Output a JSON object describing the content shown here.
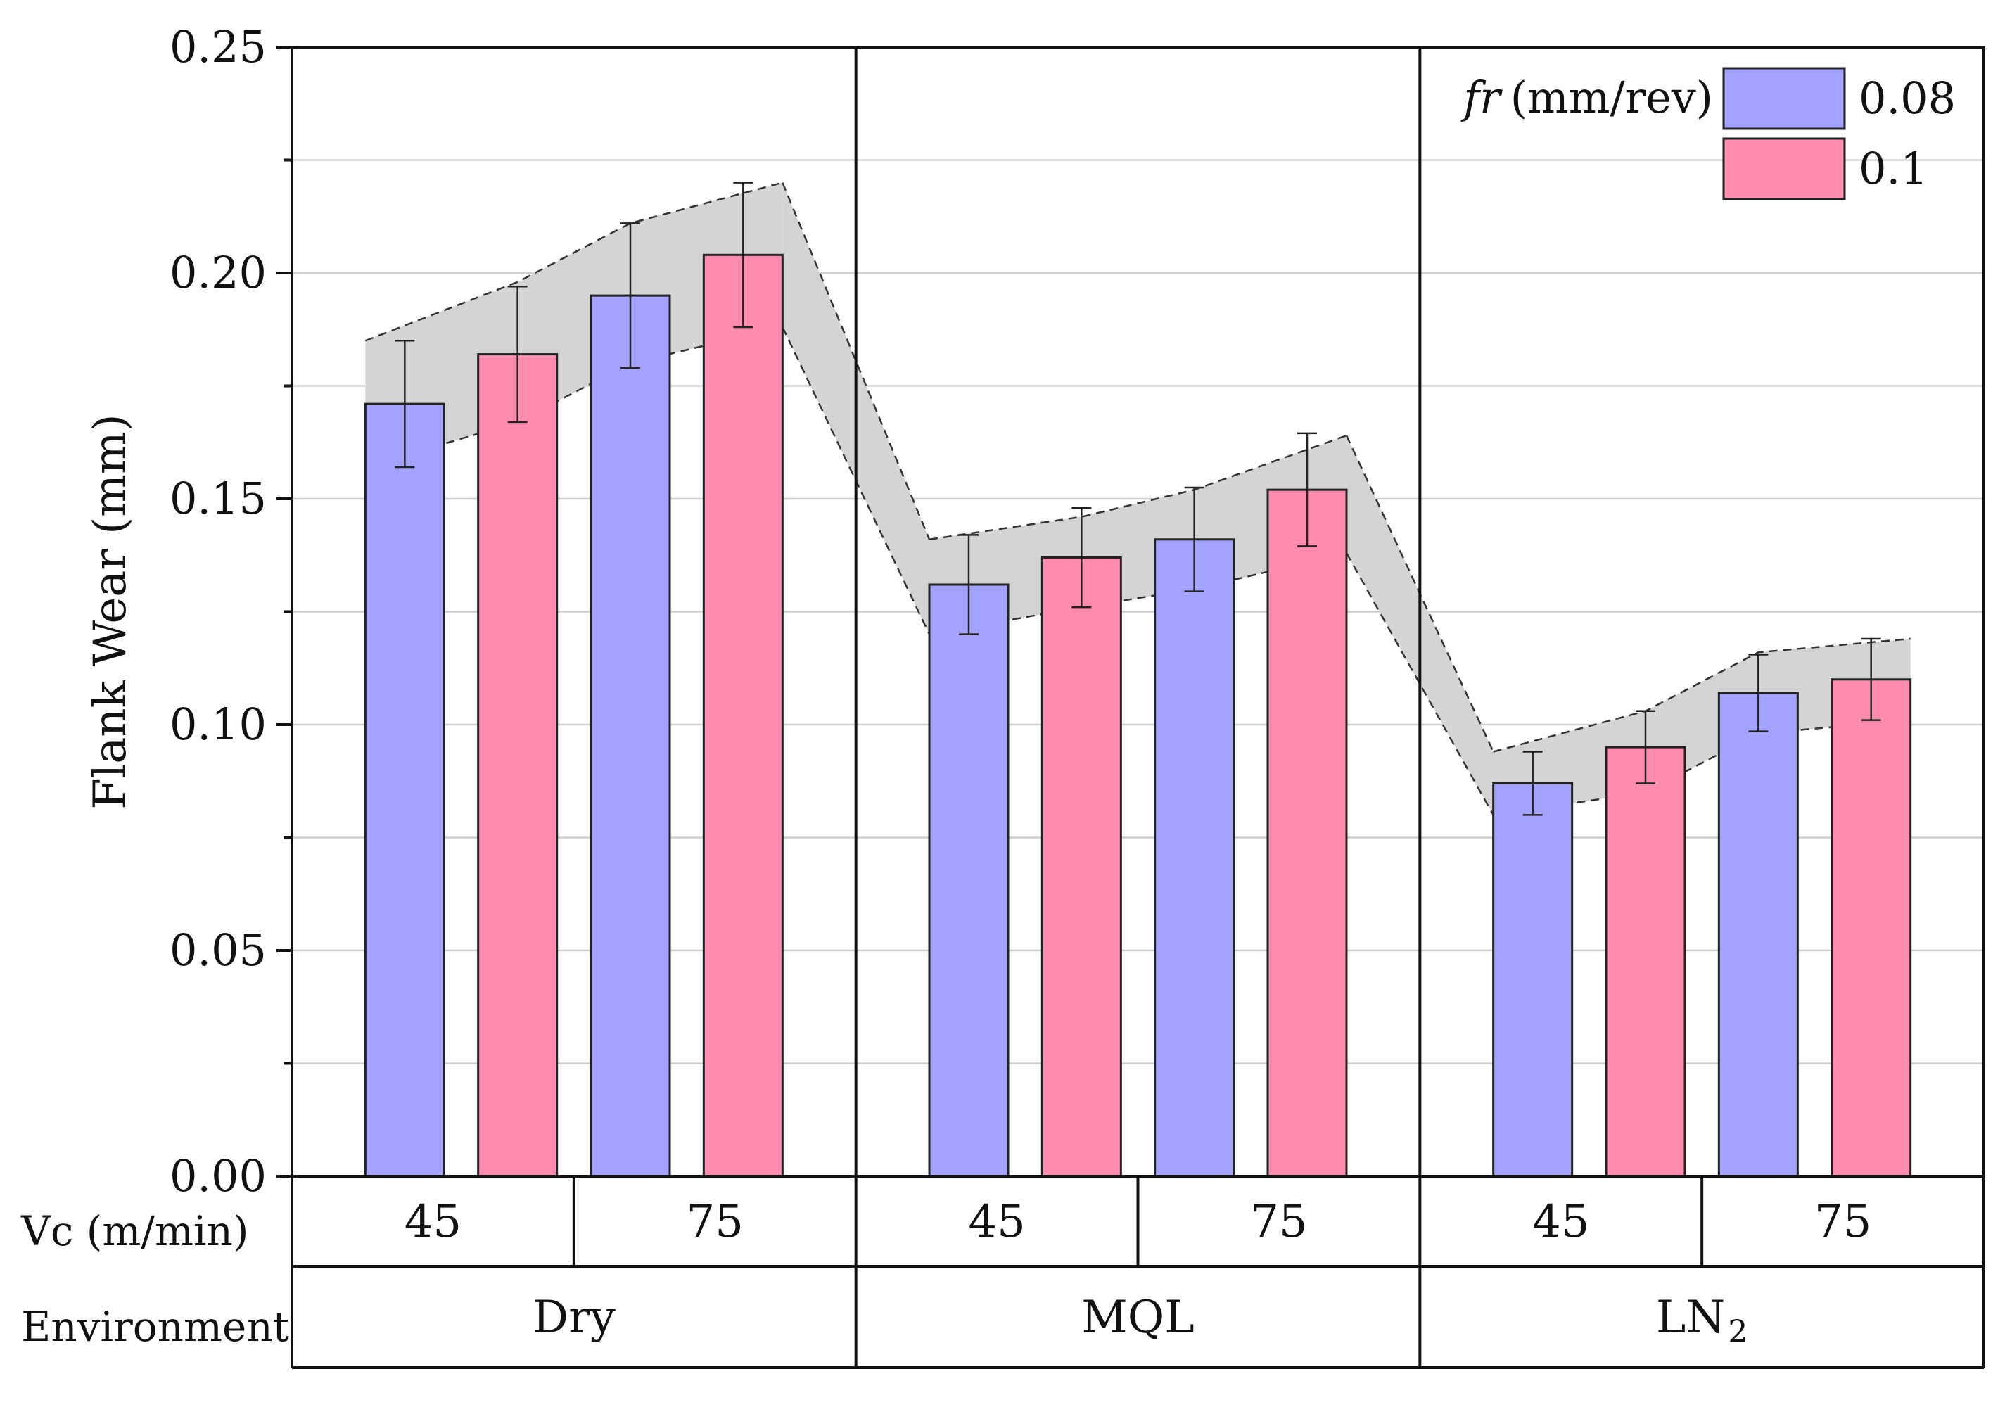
{
  "chart_data": {
    "type": "bar",
    "ylabel": "Flank Wear (mm)",
    "ylim": [
      0,
      0.25
    ],
    "yticks": [
      "0.00",
      "0.05",
      "0.10",
      "0.15",
      "0.20",
      "0.25"
    ],
    "grid": true,
    "x_row1_label": "Vc (m/min)",
    "x_row2_label": "Environment",
    "environments": [
      {
        "label": "Dry",
        "sub": ""
      },
      {
        "label": "MQL",
        "sub": ""
      },
      {
        "label": "LN",
        "sub": "2"
      }
    ],
    "speeds": [
      "45",
      "75"
    ],
    "legend": {
      "title_italic": "fr",
      "title_unit": "(mm/rev)",
      "position": "top-right"
    },
    "series": [
      {
        "name": "0.08",
        "color": "#a3a3ff",
        "values": [
          0.171,
          0.195,
          0.131,
          0.141,
          0.087,
          0.107
        ],
        "errors": [
          0.014,
          0.016,
          0.011,
          0.0115,
          0.007,
          0.0085
        ]
      },
      {
        "name": "0.1",
        "color": "#ff8cae",
        "values": [
          0.182,
          0.204,
          0.137,
          0.152,
          0.095,
          0.11
        ],
        "errors": [
          0.015,
          0.016,
          0.011,
          0.0125,
          0.008,
          0.009
        ]
      }
    ],
    "band": {
      "color": "#d4d4d4",
      "upper": [
        0.185,
        0.198,
        0.211,
        0.22,
        0.141,
        0.146,
        0.152,
        0.164,
        0.094,
        0.103,
        0.116,
        0.119
      ],
      "lower": [
        0.157,
        0.167,
        0.18,
        0.188,
        0.12,
        0.126,
        0.13,
        0.138,
        0.08,
        0.085,
        0.098,
        0.101
      ]
    }
  }
}
